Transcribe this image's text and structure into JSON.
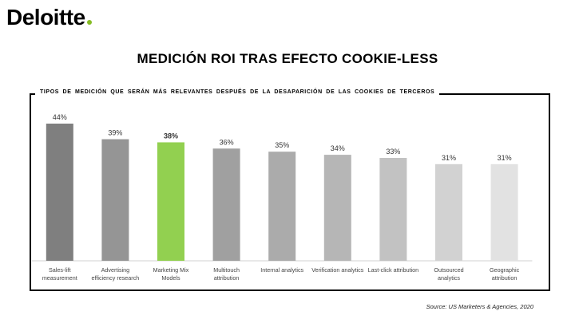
{
  "brand": {
    "name": "Deloitte",
    "dot_color": "#86bc25"
  },
  "title": "MEDICIÓN ROI TRAS EFECTO COOKIE-LESS",
  "source": "Source: US Marketers & Agencies, 2020",
  "chart_data": {
    "type": "bar",
    "title": "TIPOS DE MEDICIÓN QUE SERÁN MÁS RELEVANTES DESPUÉS DE LA DESAPARICIÓN DE LAS COOKIES DE TERCEROS",
    "categories": [
      [
        "Sales-lift",
        "measurement"
      ],
      [
        "Advertising",
        "efficiency research"
      ],
      [
        "Marketing Mix",
        "Models"
      ],
      [
        "Multitouch",
        "attribution"
      ],
      [
        "Internal analytics"
      ],
      [
        "Verification analytics"
      ],
      [
        "Last-click attribution"
      ],
      [
        "Outsourced",
        "analytics"
      ],
      [
        "Geographic",
        "attribution"
      ]
    ],
    "values": [
      44,
      39,
      38,
      36,
      35,
      34,
      33,
      31,
      31
    ],
    "value_labels": [
      "44%",
      "39%",
      "38%",
      "36%",
      "35%",
      "34%",
      "33%",
      "31%",
      "31%"
    ],
    "highlight_index": 2,
    "colors": [
      "#7f7f7f",
      "#959595",
      "#92d050",
      "#a0a0a0",
      "#ababab",
      "#b6b6b6",
      "#c2c2c2",
      "#d2d2d2",
      "#e2e2e2"
    ],
    "ylim": [
      0,
      44
    ],
    "grid": false,
    "legend": "none"
  }
}
